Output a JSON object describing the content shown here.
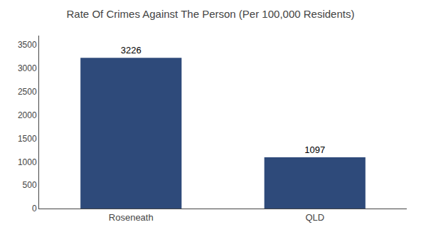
{
  "chart_data": {
    "type": "bar",
    "title": "Rate Of Crimes Against The Person (Per 100,000 Residents)",
    "categories": [
      "Roseneath",
      "QLD"
    ],
    "values": [
      3226,
      1097
    ],
    "color": "#2e4a7a",
    "ylim": [
      0,
      3700
    ],
    "yticks": [
      0,
      500,
      1000,
      1500,
      2000,
      2500,
      3000,
      3500
    ],
    "grid": false,
    "data_labels": true
  }
}
